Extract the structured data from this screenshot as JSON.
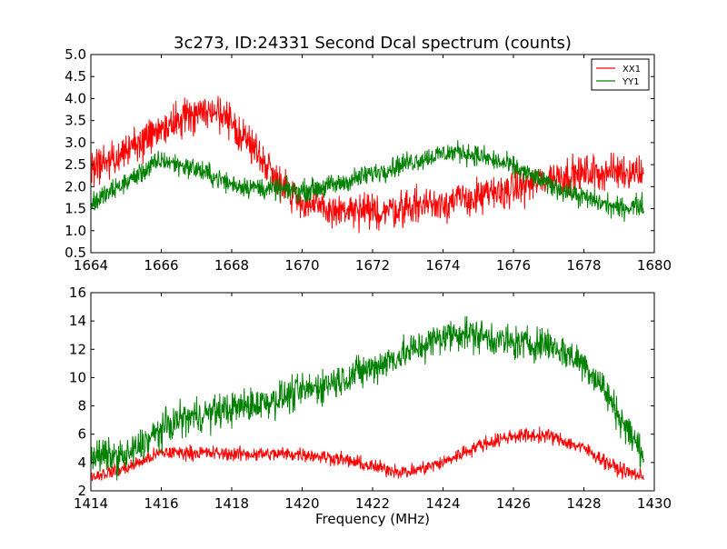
{
  "title": "3c273, ID:24331 Second Dcal spectrum (counts)",
  "chart_data": [
    {
      "type": "line",
      "name": "top-panel",
      "xlim": [
        1664,
        1680
      ],
      "ylim": [
        0.5,
        5.0
      ],
      "xticks": [
        "1664",
        "1666",
        "1668",
        "1670",
        "1672",
        "1674",
        "1676",
        "1678",
        "1680"
      ],
      "yticks": [
        "0.5",
        "1.0",
        "1.5",
        "2.0",
        "2.5",
        "3.0",
        "3.5",
        "4.0",
        "4.5",
        "5.0"
      ],
      "xtick_values": [
        1664,
        1666,
        1668,
        1670,
        1672,
        1674,
        1676,
        1678,
        1680
      ],
      "ytick_values": [
        0.5,
        1.0,
        1.5,
        2.0,
        2.5,
        3.0,
        3.5,
        4.0,
        4.5,
        5.0
      ],
      "legend": {
        "position": "top-right",
        "entries": [
          "XX1",
          "YY1"
        ]
      },
      "series": [
        {
          "name": "XX1",
          "color": "#ff0000",
          "noise": 0.2,
          "x": [
            1664.0,
            1665.0,
            1666.0,
            1666.5,
            1667.0,
            1667.5,
            1668.0,
            1668.5,
            1669.0,
            1669.5,
            1670.0,
            1670.5,
            1671.0,
            1672.0,
            1673.0,
            1674.0,
            1675.0,
            1676.0,
            1677.0,
            1678.0,
            1679.0,
            1679.7
          ],
          "values": [
            2.4,
            2.8,
            3.3,
            3.5,
            3.7,
            3.7,
            3.4,
            3.0,
            2.5,
            2.0,
            1.65,
            1.5,
            1.45,
            1.4,
            1.55,
            1.65,
            1.75,
            1.95,
            2.2,
            2.3,
            2.35,
            2.35
          ]
        },
        {
          "name": "YY1",
          "color": "#008000",
          "noise": 0.12,
          "x": [
            1664.0,
            1665.0,
            1666.0,
            1667.0,
            1668.0,
            1669.0,
            1670.0,
            1671.0,
            1672.0,
            1673.0,
            1674.0,
            1674.5,
            1675.0,
            1676.0,
            1677.0,
            1678.0,
            1679.0,
            1679.7
          ],
          "values": [
            1.6,
            2.1,
            2.6,
            2.4,
            2.05,
            1.95,
            1.9,
            2.05,
            2.3,
            2.55,
            2.75,
            2.8,
            2.7,
            2.45,
            2.05,
            1.75,
            1.5,
            1.6
          ]
        }
      ]
    },
    {
      "type": "line",
      "name": "bottom-panel",
      "xlim": [
        1414,
        1430
      ],
      "ylim": [
        2,
        16
      ],
      "xlabel": "Frequency (MHz)",
      "xticks": [
        "1414",
        "1416",
        "1418",
        "1420",
        "1422",
        "1424",
        "1426",
        "1428",
        "1430"
      ],
      "yticks": [
        "2",
        "4",
        "6",
        "8",
        "10",
        "12",
        "14",
        "16"
      ],
      "xtick_values": [
        1414,
        1416,
        1418,
        1420,
        1422,
        1424,
        1426,
        1428,
        1430
      ],
      "ytick_values": [
        2,
        4,
        6,
        8,
        10,
        12,
        14,
        16
      ],
      "series": [
        {
          "name": "XX1",
          "color": "#ff0000",
          "noise": 0.25,
          "x": [
            1414.0,
            1415.0,
            1416.0,
            1417.0,
            1418.0,
            1419.0,
            1420.0,
            1421.0,
            1422.0,
            1423.0,
            1424.0,
            1425.0,
            1426.0,
            1427.0,
            1428.0,
            1429.0,
            1429.7
          ],
          "values": [
            3.0,
            3.6,
            4.7,
            4.7,
            4.6,
            4.6,
            4.6,
            4.3,
            3.7,
            3.3,
            4.0,
            5.2,
            5.9,
            5.9,
            5.0,
            3.5,
            3.0
          ]
        },
        {
          "name": "YY1",
          "color": "#008000",
          "noise": 0.6,
          "x": [
            1414.0,
            1415.0,
            1416.0,
            1416.5,
            1417.0,
            1418.0,
            1419.0,
            1420.0,
            1421.0,
            1422.0,
            1423.0,
            1424.0,
            1424.5,
            1425.0,
            1426.0,
            1427.0,
            1428.0,
            1428.5,
            1429.0,
            1429.5,
            1429.7
          ],
          "values": [
            4.5,
            4.4,
            6.3,
            7.0,
            7.3,
            7.8,
            8.3,
            9.0,
            9.8,
            10.7,
            11.8,
            12.9,
            13.2,
            13.0,
            12.4,
            12.4,
            11.0,
            9.5,
            7.3,
            5.3,
            4.7
          ]
        }
      ]
    }
  ]
}
